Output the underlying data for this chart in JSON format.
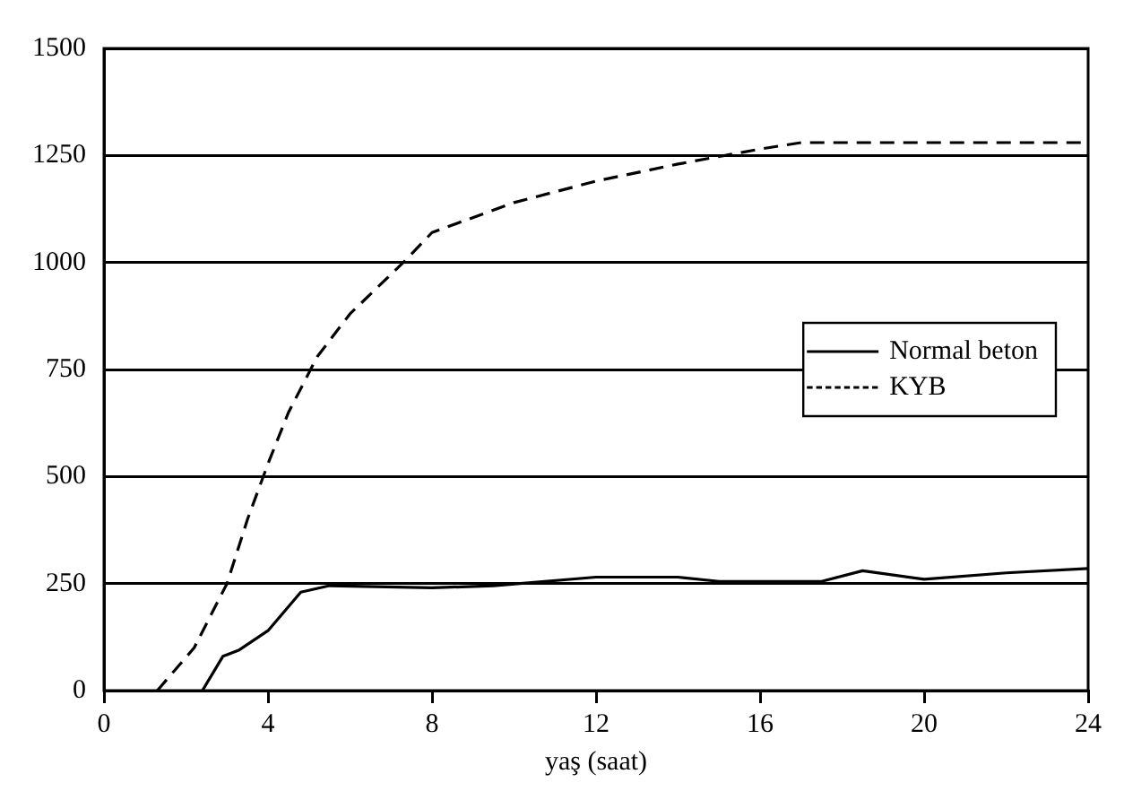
{
  "chart_data": {
    "type": "line",
    "xlabel": "yaş (saat)",
    "xlim": [
      0,
      24
    ],
    "xticks": [
      0,
      4,
      8,
      12,
      16,
      20,
      24
    ],
    "ylim": [
      0,
      1500
    ],
    "yticks": [
      0,
      250,
      500,
      750,
      1000,
      1250,
      1500
    ],
    "grid": "y",
    "legend": "right",
    "marker": "none",
    "series": [
      {
        "name": "Normal beton",
        "color": "#000000",
        "line_style": "solid",
        "x": [
          2.4,
          2.9,
          3.3,
          4,
          4.8,
          5.5,
          8,
          9.5,
          12,
          14,
          15,
          17.5,
          18.5,
          20,
          22,
          24
        ],
        "values": [
          0,
          80,
          95,
          140,
          230,
          245,
          240,
          245,
          265,
          265,
          255,
          255,
          280,
          260,
          275,
          285
        ]
      },
      {
        "name": "KYB",
        "color": "#000000",
        "line_style": "dashed",
        "x": [
          1.3,
          2.2,
          3,
          3.5,
          4,
          4.5,
          5.2,
          6,
          7.3,
          8,
          10,
          12,
          14,
          16,
          17,
          24
        ],
        "values": [
          0,
          100,
          250,
          400,
          530,
          650,
          780,
          880,
          1000,
          1070,
          1140,
          1190,
          1230,
          1265,
          1280,
          1280
        ]
      }
    ]
  }
}
